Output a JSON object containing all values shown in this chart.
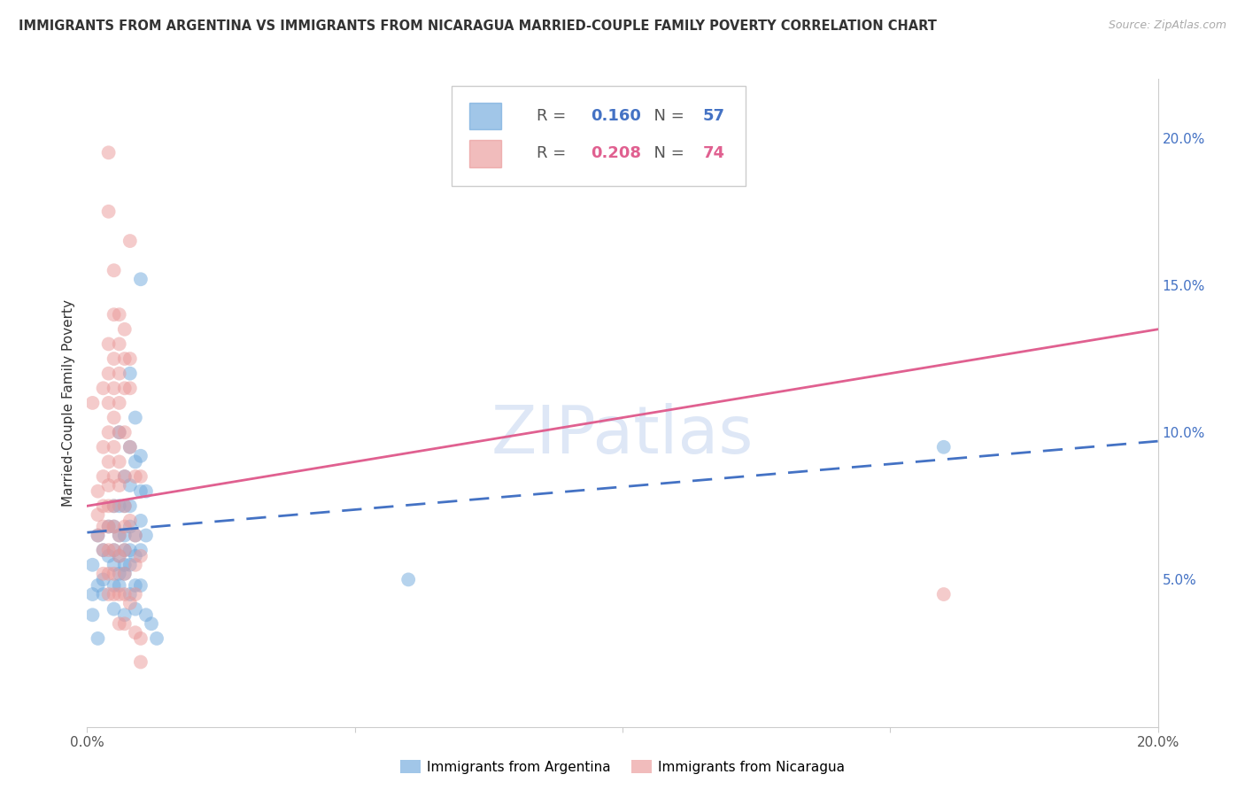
{
  "title": "IMMIGRANTS FROM ARGENTINA VS IMMIGRANTS FROM NICARAGUA MARRIED-COUPLE FAMILY POVERTY CORRELATION CHART",
  "source": "Source: ZipAtlas.com",
  "ylabel": "Married-Couple Family Poverty",
  "xlim": [
    0.0,
    0.2
  ],
  "ylim": [
    0.0,
    0.22
  ],
  "xticks": [
    0.0,
    0.05,
    0.1,
    0.15,
    0.2
  ],
  "xtick_labels": [
    "0.0%",
    "",
    "",
    "",
    "20.0%"
  ],
  "yticks": [
    0.05,
    0.1,
    0.15,
    0.2
  ],
  "ytick_labels": [
    "5.0%",
    "10.0%",
    "15.0%",
    "20.0%"
  ],
  "argentina_color": "#6fa8dc",
  "nicaragua_color": "#ea9999",
  "argentina_R": 0.16,
  "argentina_N": 57,
  "nicaragua_R": 0.208,
  "nicaragua_N": 74,
  "argentina_line_color": "#4472c4",
  "nicaragua_line_color": "#e06090",
  "watermark": "ZIPatlas",
  "argentina_line_start_y": 0.066,
  "argentina_line_end_y": 0.097,
  "nicaragua_line_start_y": 0.075,
  "nicaragua_line_end_y": 0.135,
  "argentina_points": [
    [
      0.001,
      0.055
    ],
    [
      0.002,
      0.065
    ],
    [
      0.002,
      0.048
    ],
    [
      0.003,
      0.05
    ],
    [
      0.003,
      0.06
    ],
    [
      0.003,
      0.045
    ],
    [
      0.004,
      0.068
    ],
    [
      0.004,
      0.058
    ],
    [
      0.005,
      0.075
    ],
    [
      0.005,
      0.068
    ],
    [
      0.005,
      0.06
    ],
    [
      0.005,
      0.055
    ],
    [
      0.005,
      0.048
    ],
    [
      0.005,
      0.04
    ],
    [
      0.006,
      0.1
    ],
    [
      0.006,
      0.075
    ],
    [
      0.006,
      0.065
    ],
    [
      0.006,
      0.058
    ],
    [
      0.006,
      0.052
    ],
    [
      0.006,
      0.048
    ],
    [
      0.007,
      0.085
    ],
    [
      0.007,
      0.075
    ],
    [
      0.007,
      0.065
    ],
    [
      0.007,
      0.06
    ],
    [
      0.007,
      0.055
    ],
    [
      0.007,
      0.052
    ],
    [
      0.007,
      0.038
    ],
    [
      0.008,
      0.12
    ],
    [
      0.008,
      0.095
    ],
    [
      0.008,
      0.082
    ],
    [
      0.008,
      0.075
    ],
    [
      0.008,
      0.068
    ],
    [
      0.008,
      0.06
    ],
    [
      0.008,
      0.055
    ],
    [
      0.008,
      0.045
    ],
    [
      0.009,
      0.105
    ],
    [
      0.009,
      0.09
    ],
    [
      0.009,
      0.065
    ],
    [
      0.009,
      0.058
    ],
    [
      0.009,
      0.048
    ],
    [
      0.009,
      0.04
    ],
    [
      0.01,
      0.152
    ],
    [
      0.01,
      0.092
    ],
    [
      0.01,
      0.08
    ],
    [
      0.01,
      0.07
    ],
    [
      0.01,
      0.06
    ],
    [
      0.01,
      0.048
    ],
    [
      0.011,
      0.08
    ],
    [
      0.011,
      0.065
    ],
    [
      0.011,
      0.038
    ],
    [
      0.012,
      0.035
    ],
    [
      0.013,
      0.03
    ],
    [
      0.06,
      0.05
    ],
    [
      0.16,
      0.095
    ],
    [
      0.002,
      0.03
    ],
    [
      0.001,
      0.045
    ],
    [
      0.001,
      0.038
    ]
  ],
  "nicaragua_points": [
    [
      0.001,
      0.11
    ],
    [
      0.002,
      0.08
    ],
    [
      0.002,
      0.072
    ],
    [
      0.002,
      0.065
    ],
    [
      0.003,
      0.115
    ],
    [
      0.003,
      0.095
    ],
    [
      0.003,
      0.085
    ],
    [
      0.003,
      0.075
    ],
    [
      0.003,
      0.068
    ],
    [
      0.003,
      0.06
    ],
    [
      0.003,
      0.052
    ],
    [
      0.004,
      0.195
    ],
    [
      0.004,
      0.175
    ],
    [
      0.004,
      0.13
    ],
    [
      0.004,
      0.12
    ],
    [
      0.004,
      0.11
    ],
    [
      0.004,
      0.1
    ],
    [
      0.004,
      0.09
    ],
    [
      0.004,
      0.082
    ],
    [
      0.004,
      0.075
    ],
    [
      0.004,
      0.068
    ],
    [
      0.004,
      0.06
    ],
    [
      0.004,
      0.052
    ],
    [
      0.004,
      0.045
    ],
    [
      0.005,
      0.155
    ],
    [
      0.005,
      0.14
    ],
    [
      0.005,
      0.125
    ],
    [
      0.005,
      0.115
    ],
    [
      0.005,
      0.105
    ],
    [
      0.005,
      0.095
    ],
    [
      0.005,
      0.085
    ],
    [
      0.005,
      0.075
    ],
    [
      0.005,
      0.068
    ],
    [
      0.005,
      0.06
    ],
    [
      0.005,
      0.052
    ],
    [
      0.005,
      0.045
    ],
    [
      0.006,
      0.14
    ],
    [
      0.006,
      0.13
    ],
    [
      0.006,
      0.12
    ],
    [
      0.006,
      0.11
    ],
    [
      0.006,
      0.1
    ],
    [
      0.006,
      0.09
    ],
    [
      0.006,
      0.082
    ],
    [
      0.006,
      0.065
    ],
    [
      0.006,
      0.058
    ],
    [
      0.006,
      0.045
    ],
    [
      0.006,
      0.035
    ],
    [
      0.007,
      0.135
    ],
    [
      0.007,
      0.125
    ],
    [
      0.007,
      0.115
    ],
    [
      0.007,
      0.1
    ],
    [
      0.007,
      0.085
    ],
    [
      0.007,
      0.075
    ],
    [
      0.007,
      0.068
    ],
    [
      0.007,
      0.06
    ],
    [
      0.007,
      0.052
    ],
    [
      0.007,
      0.045
    ],
    [
      0.007,
      0.035
    ],
    [
      0.008,
      0.165
    ],
    [
      0.008,
      0.125
    ],
    [
      0.008,
      0.115
    ],
    [
      0.008,
      0.095
    ],
    [
      0.008,
      0.07
    ],
    [
      0.008,
      0.042
    ],
    [
      0.009,
      0.085
    ],
    [
      0.009,
      0.065
    ],
    [
      0.009,
      0.055
    ],
    [
      0.009,
      0.045
    ],
    [
      0.009,
      0.032
    ],
    [
      0.01,
      0.085
    ],
    [
      0.01,
      0.058
    ],
    [
      0.01,
      0.03
    ],
    [
      0.16,
      0.045
    ],
    [
      0.01,
      0.022
    ]
  ]
}
